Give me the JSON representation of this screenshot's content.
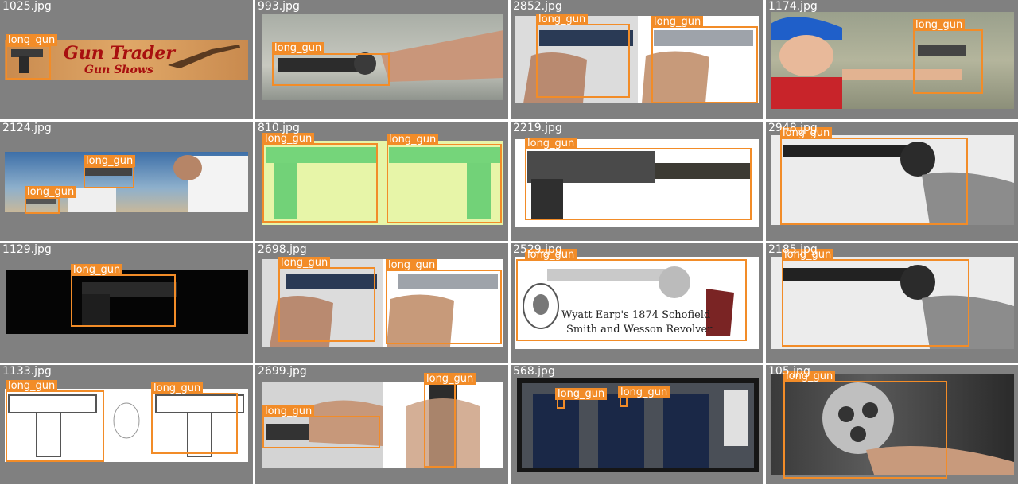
{
  "colors": {
    "tile_background": "#808080",
    "box_color": "#f28c28",
    "label_text": "#ffffff"
  },
  "tiles": [
    {
      "filename": "1025.jpg",
      "labels": [
        "long_gun"
      ],
      "banner_title": "Gun Trader",
      "banner_subtitle": "Gun Shows"
    },
    {
      "filename": "993.jpg",
      "labels": [
        "long_gun"
      ]
    },
    {
      "filename": "2852.jpg",
      "labels": [
        "long_gun",
        "long_gun"
      ]
    },
    {
      "filename": "1174.jpg",
      "labels": [
        "long_gun"
      ]
    },
    {
      "filename": "2124.jpg",
      "labels": [
        "long_gun",
        "long_gun"
      ]
    },
    {
      "filename": "810.jpg",
      "labels": [
        "long_gun",
        "long_gun"
      ]
    },
    {
      "filename": "2219.jpg",
      "labels": [
        "long_gun"
      ]
    },
    {
      "filename": "2948.jpg",
      "labels": [
        "long_gun"
      ]
    },
    {
      "filename": "1129.jpg",
      "labels": [
        "long_gun"
      ]
    },
    {
      "filename": "2698.jpg",
      "labels": [
        "long_gun",
        "long_gun"
      ]
    },
    {
      "filename": "2529.jpg",
      "labels": [
        "long_gun"
      ],
      "caption_line1": "Wyatt Earp's 1874 Schofield",
      "caption_line2": "Smith and Wesson Revolver"
    },
    {
      "filename": "2185.jpg",
      "labels": [
        "long_gun"
      ]
    },
    {
      "filename": "1133.jpg",
      "labels": [
        "long_gun",
        "long_gun"
      ]
    },
    {
      "filename": "2699.jpg",
      "labels": [
        "long_gun",
        "long_gun"
      ]
    },
    {
      "filename": "568.jpg",
      "labels": [
        "long_gun",
        "long_gun"
      ]
    },
    {
      "filename": "105.jpg",
      "labels": [
        "long_gun"
      ]
    }
  ]
}
